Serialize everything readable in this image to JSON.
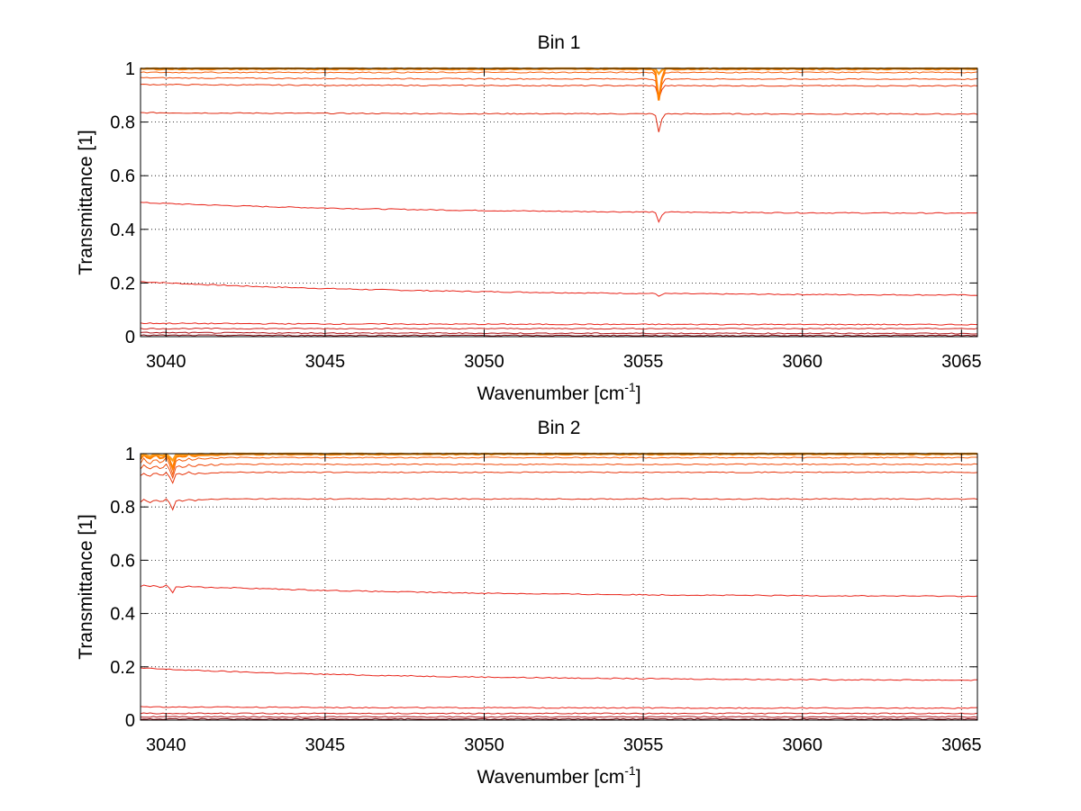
{
  "chart_data": [
    {
      "type": "line",
      "title": "Bin 1",
      "xlabel": "Wavenumber [cm",
      "xlabel_sup": "-1",
      "xlabel_close": "]",
      "ylabel": "Transmittance [1]",
      "xlim": [
        3039.2,
        3065.5
      ],
      "ylim": [
        0,
        1
      ],
      "xticks": [
        3040,
        3045,
        3050,
        3055,
        3060,
        3065
      ],
      "xtick_labels": [
        "3040",
        "3045",
        "3050",
        "3055",
        "3060",
        "3065"
      ],
      "yticks": [
        0,
        0.2,
        0.4,
        0.6,
        0.8,
        1
      ],
      "ytick_labels": [
        "0",
        "0.2",
        "0.4",
        "0.6",
        "0.8",
        "1"
      ],
      "grid": true,
      "absorption_feature_x": 3055.5,
      "series": [
        {
          "color": "#e8241a",
          "start": 0.205,
          "end": 0.155,
          "dip": 0.01
        },
        {
          "color": "#e8241a",
          "start": 0.5,
          "end": 0.46,
          "dip": 0.04
        },
        {
          "color": "#e02a10",
          "start": 0.835,
          "end": 0.83,
          "dip": 0.07
        },
        {
          "color": "#e8360c",
          "start": 0.94,
          "end": 0.935,
          "dip": 0.05
        },
        {
          "color": "#f04a0a",
          "start": 0.965,
          "end": 0.96,
          "dip": 0.08
        },
        {
          "color": "#f55c08",
          "start": 0.985,
          "end": 0.985,
          "dip": 0.1
        },
        {
          "color": "#ff7f00",
          "start": 0.998,
          "end": 0.998,
          "dip": 0.12
        },
        {
          "color": "#ff9e1a",
          "start": 1.0,
          "end": 1.0,
          "dip": 0.02
        },
        {
          "color": "#e8241a",
          "start": 0.05,
          "end": 0.045,
          "dip": 0.0
        },
        {
          "color": "#d0201a",
          "start": 0.03,
          "end": 0.03,
          "dip": 0.0
        },
        {
          "color": "#b0141a",
          "start": 0.015,
          "end": 0.012,
          "dip": 0.0
        },
        {
          "color": "#800a10",
          "start": 0.005,
          "end": 0.004,
          "dip": 0.0
        }
      ]
    },
    {
      "type": "line",
      "title": "Bin 2",
      "xlabel": "Wavenumber [cm",
      "xlabel_sup": "-1",
      "xlabel_close": "]",
      "ylabel": "Transmittance [1]",
      "xlim": [
        3039.2,
        3065.5
      ],
      "ylim": [
        0,
        1
      ],
      "xticks": [
        3040,
        3045,
        3050,
        3055,
        3060,
        3065
      ],
      "xtick_labels": [
        "3040",
        "3045",
        "3050",
        "3055",
        "3060",
        "3065"
      ],
      "yticks": [
        0,
        0.2,
        0.4,
        0.6,
        0.8,
        1
      ],
      "ytick_labels": [
        "0",
        "0.2",
        "0.4",
        "0.6",
        "0.8",
        "1"
      ],
      "grid": true,
      "absorption_feature_x": 3040.2,
      "series": [
        {
          "color": "#e8241a",
          "start": 0.195,
          "end": 0.15,
          "dip": 0.0
        },
        {
          "color": "#e8241a",
          "start": 0.51,
          "end": 0.465,
          "dip": 0.02
        },
        {
          "color": "#e02a10",
          "start": 0.83,
          "end": 0.83,
          "dip": 0.03
        },
        {
          "color": "#e8360c",
          "start": 0.93,
          "end": 0.93,
          "dip": 0.03
        },
        {
          "color": "#f04a0a",
          "start": 0.96,
          "end": 0.96,
          "dip": 0.04
        },
        {
          "color": "#f55c08",
          "start": 0.985,
          "end": 0.985,
          "dip": 0.05
        },
        {
          "color": "#ff7f00",
          "start": 0.998,
          "end": 0.998,
          "dip": 0.04
        },
        {
          "color": "#ff9e1a",
          "start": 1.0,
          "end": 1.0,
          "dip": 0.02
        },
        {
          "color": "#e8241a",
          "start": 0.05,
          "end": 0.045,
          "dip": 0.0
        },
        {
          "color": "#d0201a",
          "start": 0.025,
          "end": 0.025,
          "dip": 0.0
        },
        {
          "color": "#b0141a",
          "start": 0.012,
          "end": 0.012,
          "dip": 0.0
        },
        {
          "color": "#800a10",
          "start": 0.004,
          "end": 0.004,
          "dip": 0.0
        }
      ]
    }
  ]
}
